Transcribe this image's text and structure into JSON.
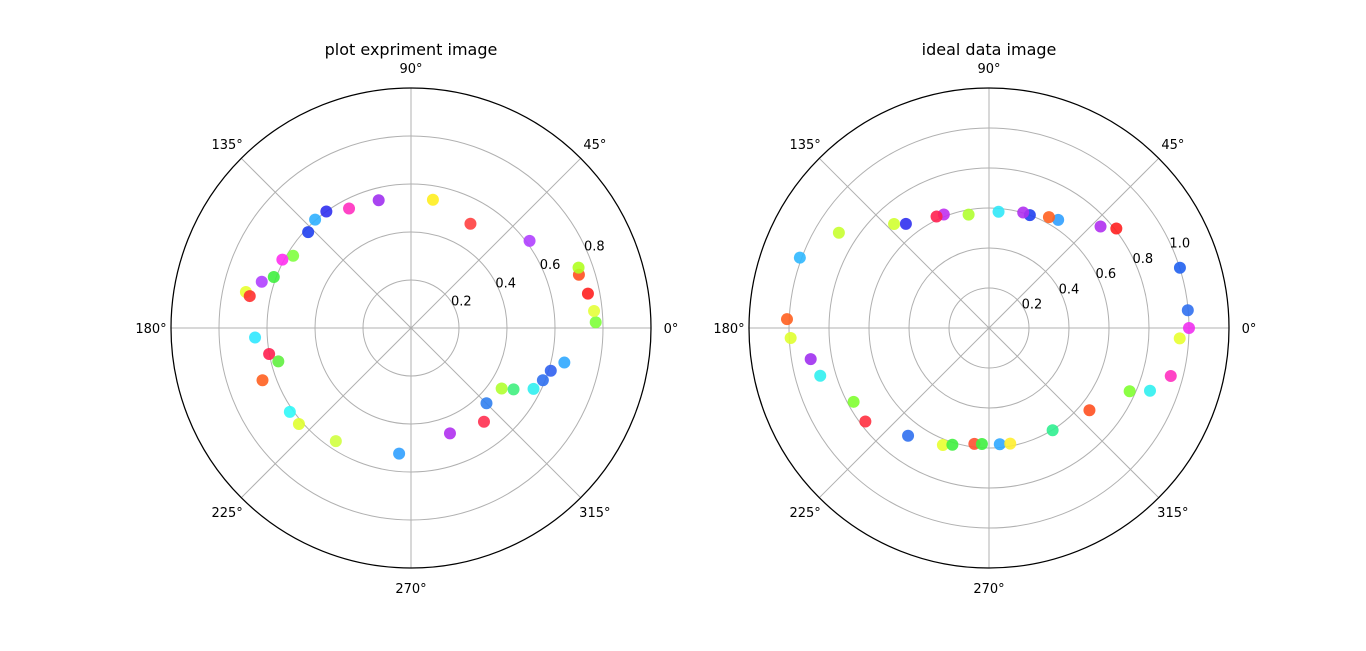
{
  "chart_data": [
    {
      "type": "scatter",
      "polar": true,
      "title": "plot expriment image",
      "theta_unit": "degrees",
      "rlim": [
        0,
        1.0
      ],
      "radial_ticks": [
        0.2,
        0.4,
        0.6,
        0.8
      ],
      "radial_tick_labels": [
        "0.2",
        "0.4",
        "0.6",
        "0.8"
      ],
      "angle_ticks": [
        0,
        45,
        90,
        135,
        180,
        225,
        270,
        315
      ],
      "angle_tick_labels": [
        "0°",
        "45°",
        "90°",
        "135°",
        "180°",
        "225°",
        "270°",
        "315°"
      ],
      "grid": true,
      "points": [
        {
          "theta": 1.8,
          "r": 0.77,
          "color": "#7dff3a"
        },
        {
          "theta": 5.3,
          "r": 0.766,
          "color": "#e4ff3a"
        },
        {
          "theta": 11.0,
          "r": 0.751,
          "color": "#ff2020"
        },
        {
          "theta": 17.6,
          "r": 0.734,
          "color": "#ff5020"
        },
        {
          "theta": 19.8,
          "r": 0.742,
          "color": "#b0ff20"
        },
        {
          "theta": 36.3,
          "r": 0.613,
          "color": "#b040ff"
        },
        {
          "theta": 60.3,
          "r": 0.5,
          "color": "#ff4040"
        },
        {
          "theta": 80.3,
          "r": 0.542,
          "color": "#ffee20"
        },
        {
          "theta": 104.2,
          "r": 0.549,
          "color": "#a030f0"
        },
        {
          "theta": 117.4,
          "r": 0.561,
          "color": "#ff30c0"
        },
        {
          "theta": 126.0,
          "r": 0.6,
          "color": "#3030f0"
        },
        {
          "theta": 131.5,
          "r": 0.603,
          "color": "#30b0ff"
        },
        {
          "theta": 137.0,
          "r": 0.586,
          "color": "#2040f0"
        },
        {
          "theta": 148.5,
          "r": 0.576,
          "color": "#80ff40"
        },
        {
          "theta": 152.0,
          "r": 0.607,
          "color": "#ff30f0"
        },
        {
          "theta": 159.6,
          "r": 0.61,
          "color": "#40f040"
        },
        {
          "theta": 162.8,
          "r": 0.651,
          "color": "#b040ff"
        },
        {
          "theta": 167.7,
          "r": 0.704,
          "color": "#e8ff30"
        },
        {
          "theta": 168.8,
          "r": 0.685,
          "color": "#ff3030"
        },
        {
          "theta": 183.5,
          "r": 0.651,
          "color": "#30e8ff"
        },
        {
          "theta": 190.4,
          "r": 0.601,
          "color": "#ff2050"
        },
        {
          "theta": 194.1,
          "r": 0.57,
          "color": "#60f040"
        },
        {
          "theta": 199.4,
          "r": 0.656,
          "color": "#ff6020"
        },
        {
          "theta": 214.7,
          "r": 0.614,
          "color": "#30f8f8"
        },
        {
          "theta": 220.6,
          "r": 0.615,
          "color": "#e0ff30"
        },
        {
          "theta": 236.4,
          "r": 0.566,
          "color": "#d0ff40"
        },
        {
          "theta": 264.6,
          "r": 0.526,
          "color": "#30a0ff"
        },
        {
          "theta": 290.3,
          "r": 0.468,
          "color": "#b030f0"
        },
        {
          "theta": 307.9,
          "r": 0.495,
          "color": "#ff3050"
        },
        {
          "theta": 315.1,
          "r": 0.444,
          "color": "#3080f0"
        },
        {
          "theta": 326.3,
          "r": 0.454,
          "color": "#b0ff30"
        },
        {
          "theta": 329.1,
          "r": 0.498,
          "color": "#40f080"
        },
        {
          "theta": 333.6,
          "r": 0.57,
          "color": "#30f0f0"
        },
        {
          "theta": 338.4,
          "r": 0.591,
          "color": "#3070f0"
        },
        {
          "theta": 343.0,
          "r": 0.609,
          "color": "#3060f0"
        },
        {
          "theta": 347.3,
          "r": 0.655,
          "color": "#30a8ff"
        }
      ]
    },
    {
      "type": "scatter",
      "polar": true,
      "title": "ideal data image",
      "theta_unit": "degrees",
      "rlim": [
        0,
        1.2
      ],
      "radial_ticks": [
        0.2,
        0.4,
        0.6,
        0.8,
        1.0
      ],
      "radial_tick_labels": [
        "0.2",
        "0.4",
        "0.6",
        "0.8",
        "1.0"
      ],
      "angle_ticks": [
        0,
        45,
        90,
        135,
        180,
        225,
        270,
        315
      ],
      "angle_tick_labels": [
        "0°",
        "45°",
        "90°",
        "135°",
        "180°",
        "225°",
        "270°",
        "315°"
      ],
      "grid": true,
      "points": [
        {
          "theta": 0.0,
          "r": 1.0,
          "color": "#f030f0"
        },
        {
          "theta": 5.1,
          "r": 0.998,
          "color": "#3070f0"
        },
        {
          "theta": 17.5,
          "r": 1.001,
          "color": "#2060f0"
        },
        {
          "theta": 38.0,
          "r": 0.808,
          "color": "#ff2020"
        },
        {
          "theta": 42.3,
          "r": 0.754,
          "color": "#b030f0"
        },
        {
          "theta": 57.4,
          "r": 0.642,
          "color": "#30a0ff"
        },
        {
          "theta": 61.6,
          "r": 0.63,
          "color": "#ff6020"
        },
        {
          "theta": 70.1,
          "r": 0.6,
          "color": "#2040f0"
        },
        {
          "theta": 73.5,
          "r": 0.602,
          "color": "#b030f0"
        },
        {
          "theta": 85.3,
          "r": 0.583,
          "color": "#30e8f8"
        },
        {
          "theta": 100.2,
          "r": 0.576,
          "color": "#b0ff30"
        },
        {
          "theta": 111.7,
          "r": 0.611,
          "color": "#c030f0"
        },
        {
          "theta": 115.2,
          "r": 0.616,
          "color": "#ff2050"
        },
        {
          "theta": 128.6,
          "r": 0.666,
          "color": "#3030f0"
        },
        {
          "theta": 132.4,
          "r": 0.704,
          "color": "#d0ff30"
        },
        {
          "theta": 147.6,
          "r": 0.889,
          "color": "#c8ff30"
        },
        {
          "theta": 159.6,
          "r": 1.009,
          "color": "#30b8ff"
        },
        {
          "theta": 177.5,
          "r": 1.011,
          "color": "#ff6020"
        },
        {
          "theta": 182.9,
          "r": 0.993,
          "color": "#e0ff30"
        },
        {
          "theta": 189.9,
          "r": 0.905,
          "color": "#a030f0"
        },
        {
          "theta": 195.8,
          "r": 0.877,
          "color": "#30f0f0"
        },
        {
          "theta": 208.6,
          "r": 0.771,
          "color": "#80ff30"
        },
        {
          "theta": 217.1,
          "r": 0.775,
          "color": "#ff3040"
        },
        {
          "theta": 233.1,
          "r": 0.674,
          "color": "#3070f0"
        },
        {
          "theta": 248.5,
          "r": 0.629,
          "color": "#e8ff30"
        },
        {
          "theta": 252.6,
          "r": 0.612,
          "color": "#40f040"
        },
        {
          "theta": 262.8,
          "r": 0.584,
          "color": "#ff5030"
        },
        {
          "theta": 266.5,
          "r": 0.581,
          "color": "#40f040"
        },
        {
          "theta": 275.3,
          "r": 0.584,
          "color": "#30a8ff"
        },
        {
          "theta": 280.4,
          "r": 0.588,
          "color": "#ffee30"
        },
        {
          "theta": 301.9,
          "r": 0.602,
          "color": "#30f090"
        },
        {
          "theta": 320.7,
          "r": 0.649,
          "color": "#ff5020"
        },
        {
          "theta": 335.8,
          "r": 0.771,
          "color": "#80ff30"
        },
        {
          "theta": 338.7,
          "r": 0.864,
          "color": "#30f0f0"
        },
        {
          "theta": 345.2,
          "r": 0.94,
          "color": "#ff30c0"
        },
        {
          "theta": 356.9,
          "r": 0.955,
          "color": "#e8ff30"
        }
      ]
    }
  ]
}
